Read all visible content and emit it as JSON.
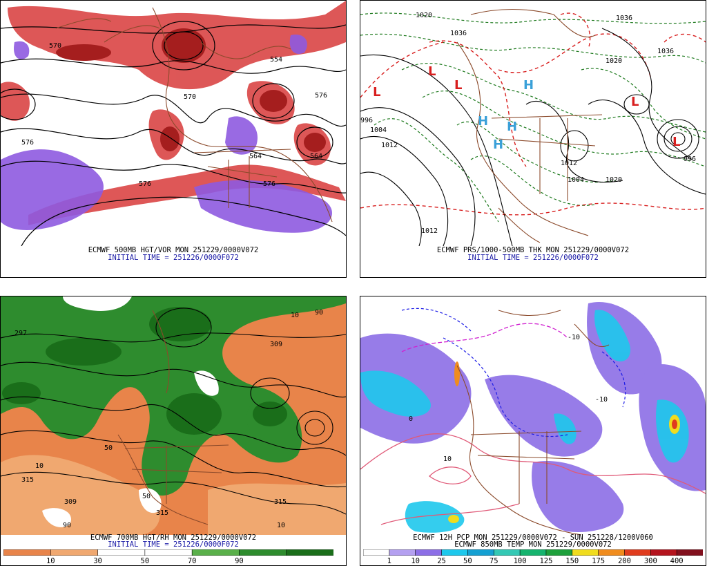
{
  "panels": [
    {
      "id": "p1",
      "caption_line1": "ECMWF 500MB HGT/VOR MON 251229/0000V072",
      "caption_line2": "INITIAL TIME = 251226/0000F072",
      "contour_labels": [
        "570",
        "576",
        "564",
        "554",
        "576",
        "564",
        "570",
        "576",
        "576"
      ],
      "colors": {
        "vort_pos": "#d83a3a",
        "vort_pos_dark": "#a51e1e",
        "vort_neg": "#8e5ae0",
        "contour": "#000000",
        "border": "#8b4a2b"
      }
    },
    {
      "id": "p2",
      "caption_line1": "ECMWF PRS/1000-500MB THK MON 251229/0000V072",
      "caption_line2": "INITIAL TIME = 251226/0000F072",
      "contour_labels": [
        "1020",
        "1036",
        "1036",
        "1036",
        "1020",
        "996",
        "1004",
        "1012",
        "1020",
        "1012",
        "1012",
        "996",
        "1004"
      ],
      "pressure_centers": [
        "L",
        "L",
        "L",
        "H",
        "H",
        "H",
        "H",
        "L",
        "L"
      ],
      "colors": {
        "isobar": "#000000",
        "thk_cold": "#1e7a1e",
        "thk_warm": "#d81e1e",
        "high": "#3aa0d8",
        "low": "#d81e1e",
        "border": "#8b4a2b"
      }
    },
    {
      "id": "p3",
      "caption_line1": "ECMWF 700MB HGT/RH MON 251229/0000V072",
      "caption_line2": "INITIAL TIME = 251226/0000F072",
      "contour_labels": [
        "297",
        "309",
        "315",
        "315",
        "309",
        "315",
        "10",
        "10",
        "90",
        "50",
        "50",
        "10",
        "90"
      ],
      "colorbar": {
        "colors": [
          "#e8844a",
          "#f0a870",
          "#ffffff",
          "#ffffff",
          "#5ab04a",
          "#2e8c2e",
          "#1a6e1a"
        ],
        "labels": [
          "10",
          "30",
          "50",
          "70",
          "90"
        ]
      },
      "colors": {
        "contour": "#000000",
        "border": "#8b4a2b"
      }
    },
    {
      "id": "p4",
      "caption_line1": "ECMWF 12H PCP MON 251229/0000V072 - SUN 251228/1200V060",
      "caption_line2": "ECMWF 850MB TEMP MON 251229/0000V072",
      "contour_labels": [
        "-10",
        "-10",
        "10",
        "0"
      ],
      "colorbar": {
        "colors": [
          "#ffffff",
          "#b4a0f0",
          "#8c6ee6",
          "#1ec8ec",
          "#14a0d2",
          "#34c8b4",
          "#16b46e",
          "#1ea03c",
          "#f0dc1e",
          "#f08c1e",
          "#e03c1e",
          "#b4141e",
          "#82101e"
        ],
        "labels": [
          "1",
          "10",
          "25",
          "50",
          "75",
          "100",
          "125",
          "150",
          "175",
          "200",
          "300",
          "400"
        ]
      },
      "colors": {
        "pcp_light": "#8c6ee6",
        "pcp_heavy": "#1ec8ec",
        "temp_pos": "#e05a78",
        "temp_neg": "#1a1ae6",
        "border": "#8b4a2b"
      }
    }
  ]
}
